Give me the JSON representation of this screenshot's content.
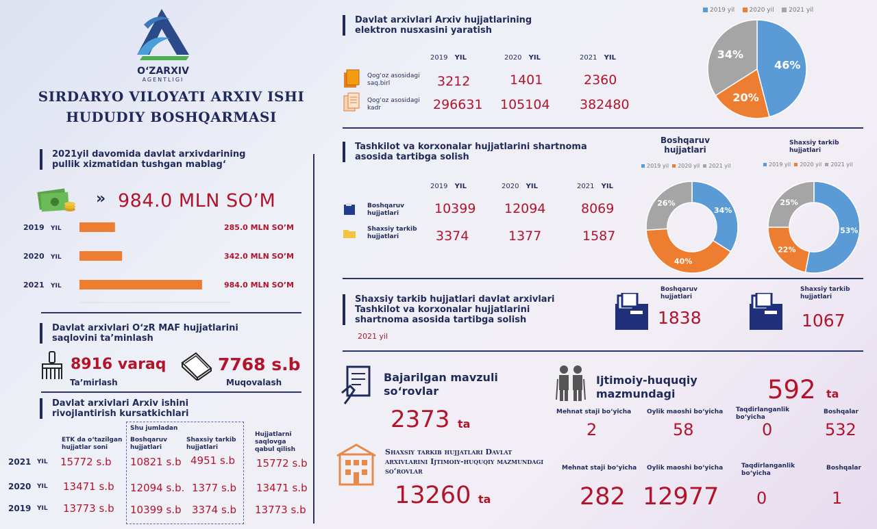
{
  "brand": {
    "name": "O‘ZARXIV",
    "sub": "AGENTLIGI",
    "title_line1": "SIRDARYO VILOYATI ARXIV ISHI",
    "title_line2": "HUDUDIY BOSHQARMASI"
  },
  "colors": {
    "navy": "#1f2a5a",
    "red": "#b2142b",
    "blue": "#5b9bd5",
    "orange": "#ed7d31",
    "gray": "#a5a5a5"
  },
  "income": {
    "title": "2021yil davomida davlat arxivdarining pullik  xizmatidan tushgan mablag‘",
    "total": "984.0 MLN SO’M",
    "arrow": "»",
    "money_icon": "money-icon",
    "chart_data": {
      "type": "bar",
      "categories": [
        "2019",
        "2020",
        "2021"
      ],
      "values": [
        285.0,
        342.0,
        984.0
      ],
      "value_labels": [
        "285.0 MLN SO’M",
        "342.0 MLN SO’M",
        "984.0 MLN SO’M"
      ],
      "unit_word": "YIL"
    }
  },
  "maf": {
    "title": "Davlat arxivlari  O‘zR MAF hujjatlarini saqlovini ta’minlash",
    "repair_value": "8916 varaq",
    "repair_label": "Ta’mirlash",
    "binding_value": "7768 s.b",
    "binding_label": "Muqovalash"
  },
  "dev": {
    "title": "Davlat arxivlari Arxiv ishini rivojlantirish  kursatkichlari",
    "shu_jumladan": "Shu jumladan",
    "headers": [
      "ETK da o‘tazilgan hujjatlar soni",
      "Boshqaruv hujjatlari",
      "Shaxsiy tarkib hujjatlari",
      "Hujjatlarni saqlovga qabul qilish"
    ],
    "rows": [
      {
        "year": "2021",
        "yil": "YIL",
        "cells": [
          "15772 s.b",
          "10821 s.b",
          "4951 s.b",
          "15772 s.b"
        ]
      },
      {
        "year": "2020",
        "yil": "YIL",
        "cells": [
          "13471 s.b",
          "12094 s.b.",
          "1377 s.b",
          "13471 s.b"
        ]
      },
      {
        "year": "2019",
        "yil": "YIL",
        "cells": [
          "13773 s.b",
          "10399 s.b",
          "3374 s.b",
          "13773 s.b"
        ]
      }
    ]
  },
  "elec": {
    "title": "Davlat arxivlari Arxiv hujjatlarining elektron nusxasini yaratish",
    "years": [
      {
        "y": "2019",
        "w": "YIL"
      },
      {
        "y": "2020",
        "w": "YIL"
      },
      {
        "y": "2021",
        "w": "YIL"
      }
    ],
    "rows": [
      {
        "label": "Qog‘oz asosidagi saq.birl",
        "values": [
          "3212",
          "1401",
          "2360"
        ]
      },
      {
        "label": "Qog‘oz asosidagi kadr",
        "values": [
          "296631",
          "105104",
          "382480"
        ]
      }
    ],
    "legend": [
      "2019 yil",
      "2020 yil",
      "2021 yil"
    ],
    "chart_data": {
      "type": "pie",
      "categories": [
        "2019 yil",
        "2020 yil",
        "2021 yil"
      ],
      "values": [
        46,
        20,
        34
      ],
      "labels": [
        "46%",
        "20%",
        "34%"
      ]
    }
  },
  "contract": {
    "title": "Tashkilot va korxonalar hujjatlarini shartnoma asosida tartibga solish",
    "years": [
      {
        "y": "2019",
        "w": "YIL"
      },
      {
        "y": "2020",
        "w": "YIL"
      },
      {
        "y": "2021",
        "w": "YIL"
      }
    ],
    "rows": [
      {
        "label": "Boshqaruv hujjatlari",
        "values": [
          "10399",
          "12094",
          "8069"
        ]
      },
      {
        "label": "Shaxsiy tarkib hujjatlari",
        "values": [
          "3374",
          "1377",
          "1587"
        ]
      }
    ],
    "donut1_title": "Boshqaruv hujjatlari",
    "donut2_title": "Shaxsiy tarkib hujjatlari",
    "legend": [
      "2019 yil",
      "2020 yil",
      "2021 yil"
    ],
    "chart_data": [
      {
        "type": "pie",
        "categories": [
          "2019 yil",
          "2020 yil",
          "2021 yil"
        ],
        "values": [
          34,
          40,
          26
        ],
        "labels": [
          "34%",
          "40%",
          "26%"
        ]
      },
      {
        "type": "pie",
        "categories": [
          "2019 yil",
          "2020 yil",
          "2021 yil"
        ],
        "values": [
          53,
          22,
          25
        ],
        "labels": [
          "53%",
          "22%",
          "25%"
        ]
      }
    ]
  },
  "personal": {
    "title": "Shaxsiy tarkib hujjatlari davlat arxivlari Tashkilot va korxonalar hujjatlarini shartnoma asosida tartibga solish",
    "year": "2021 yil",
    "b_label": "Boshqaruv hujjatlari",
    "b_value": "1838",
    "s_label": "Shaxsiy tarkib hujjatlari",
    "s_value": "1067"
  },
  "queries": {
    "title": "Bajarilgan mavzuli so‘rovlar",
    "value": "2373",
    "unit": "ta",
    "social_title": "Ijtimoiy-huquqiy mazmundagi",
    "social_value": "592",
    "social_unit": "ta",
    "cols": [
      "Mehnat staji bo‘yicha",
      "Oylik maoshi bo‘yicha",
      "Taqdirlanganlik bo‘yicha",
      "Boshqalar"
    ],
    "row1": [
      "2",
      "58",
      "0",
      "532"
    ],
    "state_title": "Shaxsiy tarkib hujjatlari Davlat arxivlarini Ijtimoiy-huquqiy mazmundagi so‘rovlar",
    "state_value": "13260",
    "state_unit": "ta",
    "row2": [
      "282",
      "12977",
      "0",
      "1"
    ]
  }
}
